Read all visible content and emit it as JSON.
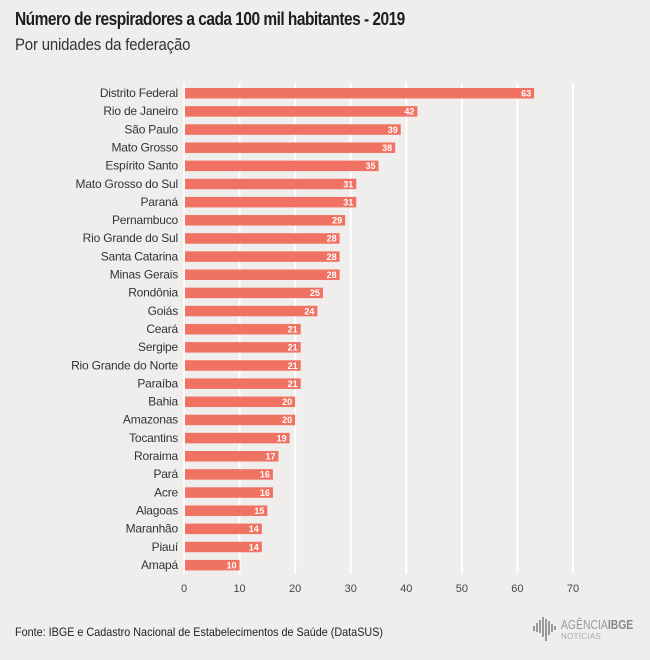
{
  "header": {
    "title": "Número de respiradores a cada 100 mil habitantes - 2019",
    "subtitle": "Por unidades da federação"
  },
  "footer": {
    "source": "Fonte: IBGE e Cadastro Nacional de Estabelecimentos de Saúde (DataSUS)",
    "logo_line1_a": "AGÊNCIA",
    "logo_line1_b": "IBGE",
    "logo_line2": "NOTÍCIAS"
  },
  "colors": {
    "bar": "#f07262",
    "gridline": "#ffffff",
    "background": "#efeeec"
  },
  "chart_data": {
    "type": "bar",
    "orientation": "horizontal",
    "title": "Número de respiradores a cada 100 mil habitantes - 2019",
    "subtitle": "Por unidades da federação",
    "xlabel": "",
    "ylabel": "",
    "xlim": [
      0,
      70
    ],
    "xticks": [
      "0",
      "10",
      "20",
      "30",
      "40",
      "50",
      "60",
      "70"
    ],
    "tick_values": [
      0,
      10,
      20,
      30,
      40,
      50,
      60,
      70
    ],
    "grid": true,
    "categories": [
      "Distrito Federal",
      "Rio de Janeiro",
      "São Paulo",
      "Mato Grosso",
      "Espírito Santo",
      "Mato Grosso do Sul",
      "Paraná",
      "Pernambuco",
      "Rio Grande do Sul",
      "Santa Catarina",
      "Minas Gerais",
      "Rondônia",
      "Goiás",
      "Ceará",
      "Sergipe",
      "Rio Grande do Norte",
      "Paraíba",
      "Bahia",
      "Amazonas",
      "Tocantins",
      "Roraima",
      "Pará",
      "Acre",
      "Alagoas",
      "Maranhão",
      "Piauí",
      "Amapá"
    ],
    "values": [
      63,
      42,
      39,
      38,
      35,
      31,
      31,
      29,
      28,
      28,
      28,
      25,
      24,
      21,
      21,
      21,
      21,
      20,
      20,
      19,
      17,
      16,
      16,
      15,
      14,
      14,
      10
    ],
    "value_labels": [
      "63",
      "42",
      "39",
      "38",
      "35",
      "31",
      "31",
      "29",
      "28",
      "28",
      "28",
      "25",
      "24",
      "21",
      "21",
      "21",
      "21",
      "20",
      "20",
      "19",
      "17",
      "16",
      "16",
      "15",
      "14",
      "14",
      "10"
    ]
  }
}
